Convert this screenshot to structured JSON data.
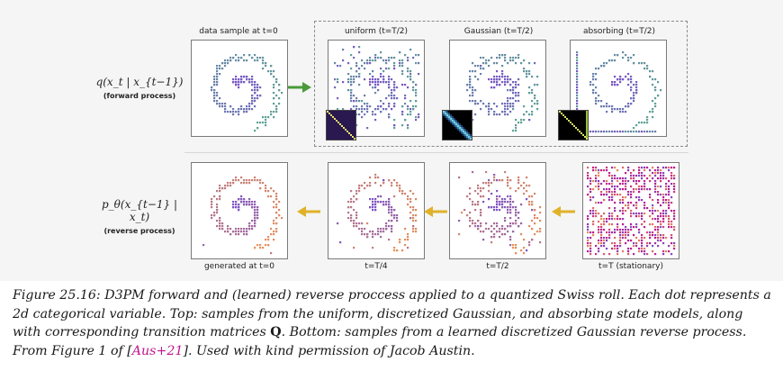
{
  "rows": {
    "forward": {
      "math": "q(x_t | x_{t−1})",
      "label": "(forward process)"
    },
    "reverse": {
      "math": "p_θ(x_{t−1} | x_t)",
      "label": "(reverse process)"
    }
  },
  "panel_titles": {
    "data_sample": "data sample at t=0",
    "uniform": "uniform (t=T/2)",
    "gaussian": "Gaussian (t=T/2)",
    "absorbing": "absorbing (t=T/2)",
    "generated": "generated at t=0",
    "t_quarter": "t=T/4",
    "t_half": "t=T/2",
    "t_stationary": "t=T (stationary)"
  },
  "colors": {
    "forward_arrow": "#4a9a3a",
    "reverse_arrow": "#e0b22a",
    "dot_purple": "#7a52c8",
    "dot_teal": "#5ea596",
    "dot_orange": "#e6935a",
    "dot_pink": "#c0168c"
  },
  "caption": {
    "prefix": "Figure 25.16: D3PM forward and (learned) reverse proccess applied to a quantized Swiss roll. Each dot represents a 2d categorical variable. Top: samples from the uniform, discretized Gaussian, and absorbing state models, along with corresponding transition matrices ",
    "matrix_symbol": "Q",
    "middle": ". Bottom: samples from a learned discretized Gaussian reverse process. From Figure 1 of [",
    "citation": "Aus+21",
    "suffix": "]. Used with kind permission of Jacob Austin."
  }
}
